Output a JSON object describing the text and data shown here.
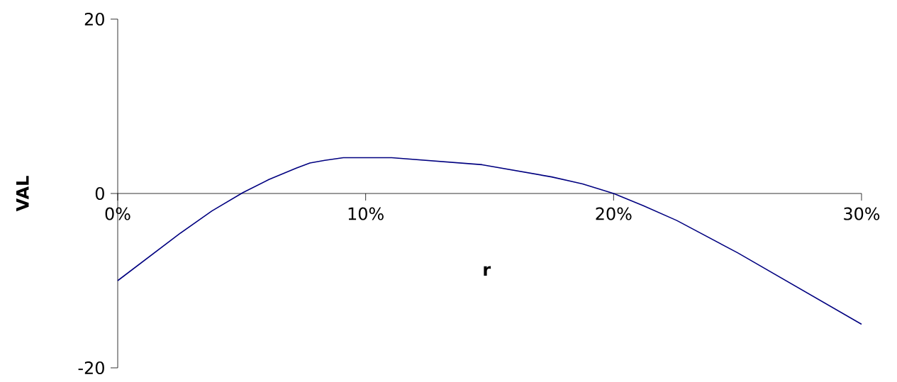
{
  "chart_data": {
    "type": "line",
    "xlabel": "r",
    "ylabel": "VAL",
    "x": [
      0,
      2.5,
      3.8,
      5.05,
      6.1,
      7.2,
      7.75,
      8.35,
      9.1,
      11.05,
      14.7,
      17.5,
      18.75,
      20,
      21.2,
      22.55,
      25,
      30
    ],
    "series": [
      {
        "color": "#000080",
        "values": [
          -10,
          -4.6,
          -2.0,
          0.1,
          1.6,
          2.9,
          3.5,
          3.8,
          4.1,
          4.1,
          3.3,
          1.9,
          1.1,
          0,
          -1.4,
          -3.1,
          -6.8,
          -15.0
        ]
      }
    ],
    "xlim": [
      0,
      30
    ],
    "ylim": [
      -20,
      20
    ],
    "xticks": [
      {
        "value": 0,
        "label": "0%"
      },
      {
        "value": 10,
        "label": "10%"
      },
      {
        "value": 20,
        "label": "20%"
      },
      {
        "value": 30,
        "label": "30%"
      }
    ],
    "yticks": [
      -20,
      0,
      20
    ],
    "grid": false,
    "marker": "none",
    "line_style": "solid"
  }
}
